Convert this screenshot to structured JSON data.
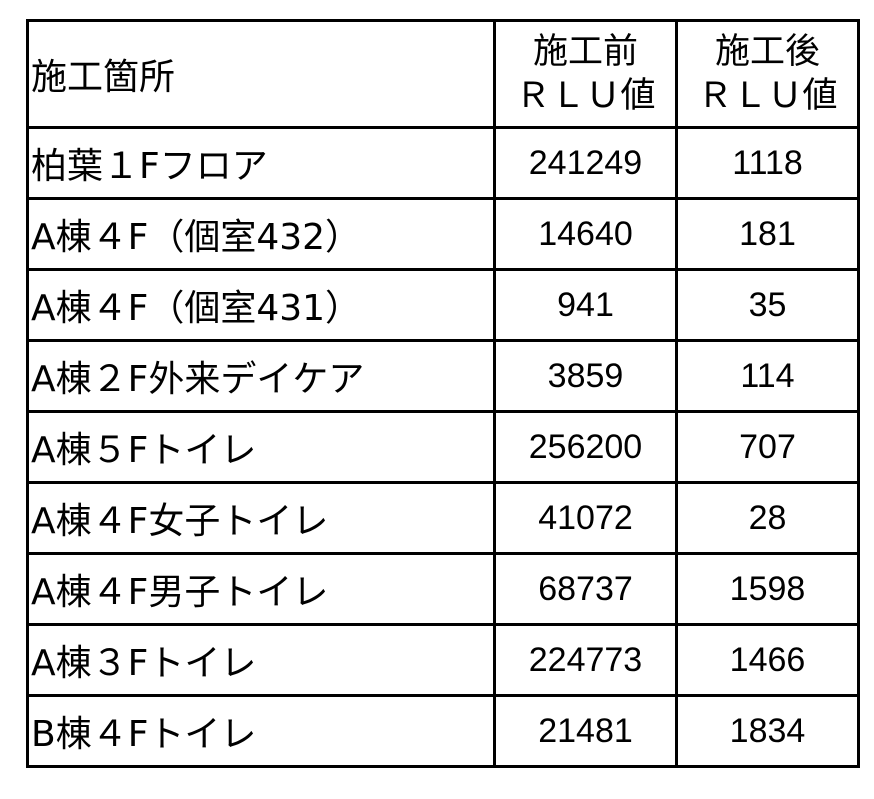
{
  "table": {
    "headers": [
      {
        "line1": "施工箇所",
        "line2": ""
      },
      {
        "line1": "施工前",
        "line2": "ＲＬＵ値"
      },
      {
        "line1": "施工後",
        "line2": "ＲＬＵ値"
      }
    ],
    "rows": [
      [
        "柏葉１Fフロア",
        "241249",
        "1118"
      ],
      [
        "A棟４F（個室432）",
        "14640",
        "181"
      ],
      [
        "A棟４F（個室431）",
        "941",
        "35"
      ],
      [
        "A棟２F外来デイケア",
        "3859",
        "114"
      ],
      [
        "A棟５Fトイレ",
        "256200",
        "707"
      ],
      [
        "A棟４F女子トイレ",
        "41072",
        "28"
      ],
      [
        "A棟４F男子トイレ",
        "68737",
        "1598"
      ],
      [
        "A棟３Fトイレ",
        "224773",
        "1466"
      ],
      [
        "B棟４Fトイレ",
        "21481",
        "1834"
      ]
    ]
  }
}
